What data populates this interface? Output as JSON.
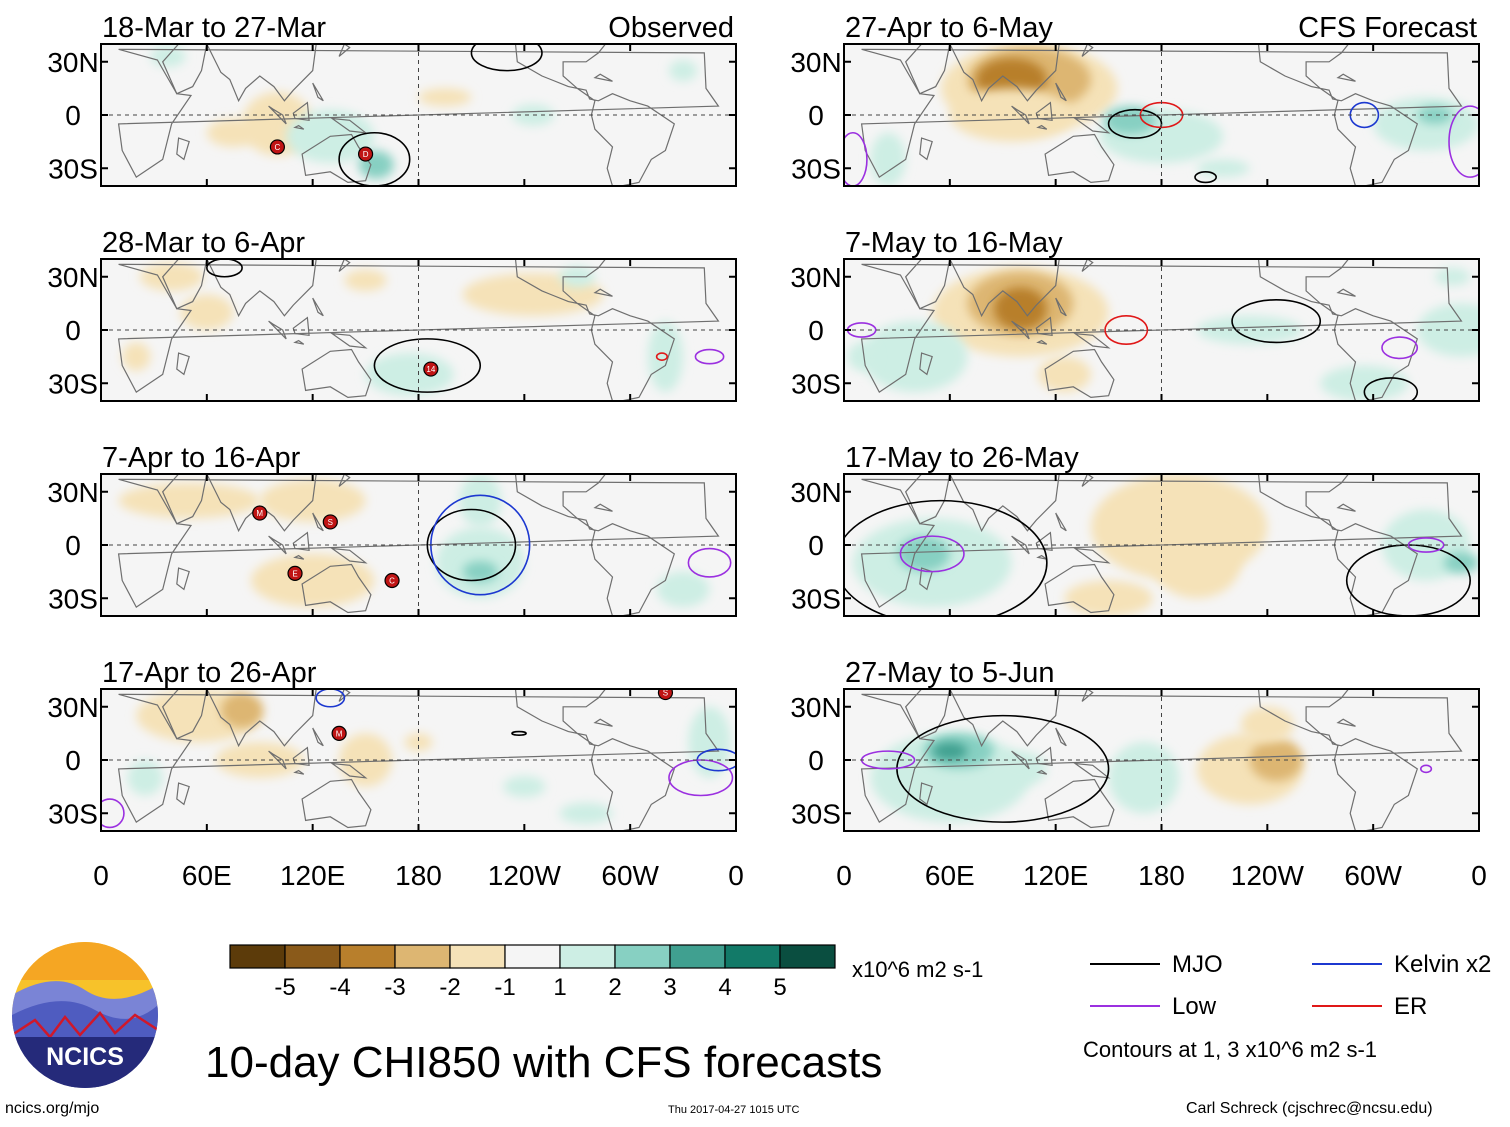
{
  "chart_data": {
    "type": "heatmap",
    "title": "10-day CHI850 with CFS forecasts",
    "variable": "CHI850",
    "units": "x10^6 m2 s-1",
    "observed_label": "Observed",
    "forecast_label": "CFS Forecast",
    "y_tick_labels": [
      "30N",
      "0",
      "30S"
    ],
    "x_tick_labels": [
      "0",
      "60E",
      "120E",
      "180",
      "120W",
      "60W",
      "0"
    ],
    "lon_range": [
      0,
      360
    ],
    "lat_range": [
      -40,
      40
    ],
    "observed_panels": [
      {
        "period": "18-Mar to 27-Mar",
        "storms": [
          {
            "letter": "C",
            "lon": 100,
            "lat": -18
          },
          {
            "letter": "D",
            "lon": 150,
            "lat": -22
          }
        ]
      },
      {
        "period": "28-Mar to 6-Apr",
        "storms": [
          {
            "letter": "14",
            "lon": 187,
            "lat": -22
          }
        ]
      },
      {
        "period": "7-Apr to 16-Apr",
        "storms": [
          {
            "letter": "M",
            "lon": 90,
            "lat": 18
          },
          {
            "letter": "S",
            "lon": 130,
            "lat": 13
          },
          {
            "letter": "E",
            "lon": 110,
            "lat": -16
          },
          {
            "letter": "C",
            "lon": 165,
            "lat": -20
          }
        ]
      },
      {
        "period": "17-Apr to 26-Apr",
        "storms": [
          {
            "letter": "M",
            "lon": 135,
            "lat": 15
          },
          {
            "letter": "S",
            "lon": 320,
            "lat": 38
          }
        ]
      }
    ],
    "forecast_panels": [
      {
        "period": "27-Apr to 6-May"
      },
      {
        "period": "7-May to 16-May"
      },
      {
        "period": "17-May to 26-May"
      },
      {
        "period": "27-May to 5-Jun"
      }
    ],
    "colorbar": {
      "boundaries": [
        "-5",
        "-4",
        "-3",
        "-2",
        "-1",
        "1",
        "2",
        "3",
        "4",
        "5"
      ],
      "colors": [
        "#5c3b0a",
        "#8a5a1a",
        "#b87f2c",
        "#ddb672",
        "#f5e2b8",
        "#f5f5f5",
        "#cdeee4",
        "#87d0c2",
        "#40a090",
        "#127a68",
        "#0a4e40"
      ]
    },
    "legend": [
      {
        "label": "MJO",
        "color": "#000000"
      },
      {
        "label": "Kelvin x2",
        "color": "#1c38d0"
      },
      {
        "label": "Low",
        "color": "#9b30e0"
      },
      {
        "label": "ER",
        "color": "#e01818"
      }
    ],
    "contour_note": "Contours at 1, 3 x10^6 m2 s-1"
  },
  "footer": {
    "logo_text": "NCICS",
    "url": "ncics.org/mjo",
    "timestamp": "Thu 2017-04-27 1015 UTC",
    "credit": "Carl Schreck (cjschrec@ncsu.edu)"
  }
}
